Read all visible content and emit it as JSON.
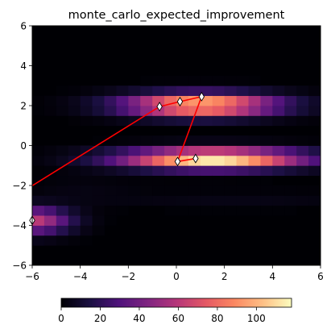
{
  "chart_data": {
    "type": "heatmap",
    "title": "monte_carlo_expected_improvement",
    "xlabel": "",
    "ylabel": "",
    "xlim": [
      -6,
      6
    ],
    "ylim": [
      -6,
      6
    ],
    "x_ticks": [
      "−6",
      "−4",
      "−2",
      "0",
      "2",
      "4",
      "6"
    ],
    "y_ticks": [
      "−6",
      "−4",
      "−2",
      "0",
      "2",
      "4",
      "6"
    ],
    "colormap": "magma",
    "grid": false,
    "heatmap": {
      "cells": 24,
      "cell_size": 0.5,
      "value_range": [
        0,
        118
      ],
      "blobs": [
        {
          "cx": 1.0,
          "cy": 2.05,
          "sx": 2.2,
          "sy": 0.4,
          "peak": 105
        },
        {
          "cx": 1.5,
          "cy": -0.65,
          "sx": 2.6,
          "sy": 0.35,
          "peak": 118
        },
        {
          "cx": -6.0,
          "cy": -3.75,
          "sx": 1.1,
          "sy": 0.45,
          "peak": 62
        },
        {
          "cx": 2.5,
          "cy": -2.7,
          "sx": 4.0,
          "sy": 0.3,
          "peak": 4
        },
        {
          "cx": -4.0,
          "cy": -2.2,
          "sx": 1.6,
          "sy": 0.5,
          "peak": 3
        }
      ]
    },
    "path": {
      "color": "#ff0000",
      "points": [
        {
          "x": -6.05,
          "y": -2.05
        },
        {
          "x": -0.7,
          "y": 1.95
        },
        {
          "x": 0.15,
          "y": 2.2
        },
        {
          "x": 1.05,
          "y": 2.45
        },
        {
          "x": 0.05,
          "y": -0.8
        },
        {
          "x": 0.8,
          "y": -0.65
        }
      ],
      "markers": [
        {
          "x": -0.7,
          "y": 1.95
        },
        {
          "x": 0.15,
          "y": 2.2
        },
        {
          "x": 1.05,
          "y": 2.45
        },
        {
          "x": 0.05,
          "y": -0.8
        },
        {
          "x": 0.8,
          "y": -0.65
        },
        {
          "x": -6.0,
          "y": -3.75
        }
      ]
    },
    "colorbar": {
      "range": [
        0,
        118
      ],
      "ticks": [
        0,
        20,
        40,
        60,
        80,
        100
      ],
      "tick_labels": [
        "0",
        "20",
        "40",
        "60",
        "80",
        "100"
      ],
      "orientation": "horizontal"
    }
  }
}
